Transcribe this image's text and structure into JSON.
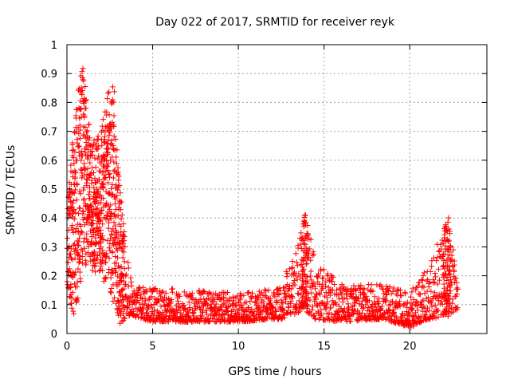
{
  "chart_data": {
    "type": "scatter",
    "title": "Day 022 of 2017, SRMTID for receiver reyk",
    "xlabel": "GPS time / hours",
    "ylabel": "SRMTID / TECUs",
    "xlim": [
      0,
      24.5
    ],
    "ylim": [
      0,
      1
    ],
    "xticks": [
      0,
      5,
      10,
      15,
      20
    ],
    "yticks": [
      0,
      0.1,
      0.2,
      0.3,
      0.4,
      0.5,
      0.6,
      0.7,
      0.8,
      0.9,
      1
    ],
    "xtick_labels": [
      "0",
      "5",
      "10",
      "15",
      "20"
    ],
    "ytick_labels": [
      "0",
      "0.1",
      "0.2",
      "0.3",
      "0.4",
      "0.5",
      "0.6",
      "0.7",
      "0.8",
      "0.9",
      "1"
    ],
    "grid": true,
    "marker": "+",
    "color": "#ff0000",
    "data_coverage_hours": [
      0,
      22.8
    ],
    "activity_envelope": [
      {
        "x": 0.0,
        "lo": 0.18,
        "hi": 0.42
      },
      {
        "x": 0.4,
        "lo": 0.05,
        "hi": 0.72
      },
      {
        "x": 0.9,
        "lo": 0.2,
        "hi": 0.95
      },
      {
        "x": 1.4,
        "lo": 0.22,
        "hi": 0.66
      },
      {
        "x": 2.0,
        "lo": 0.18,
        "hi": 0.7
      },
      {
        "x": 2.4,
        "lo": 0.18,
        "hi": 0.85
      },
      {
        "x": 2.7,
        "lo": 0.1,
        "hi": 0.9
      },
      {
        "x": 3.0,
        "lo": 0.03,
        "hi": 0.6
      },
      {
        "x": 3.4,
        "lo": 0.05,
        "hi": 0.32
      },
      {
        "x": 3.8,
        "lo": 0.06,
        "hi": 0.16
      },
      {
        "x": 5.0,
        "lo": 0.04,
        "hi": 0.16
      },
      {
        "x": 10.0,
        "lo": 0.04,
        "hi": 0.14
      },
      {
        "x": 12.5,
        "lo": 0.05,
        "hi": 0.16
      },
      {
        "x": 13.9,
        "lo": 0.08,
        "hi": 0.42
      },
      {
        "x": 14.5,
        "lo": 0.05,
        "hi": 0.25
      },
      {
        "x": 16.0,
        "lo": 0.04,
        "hi": 0.17
      },
      {
        "x": 18.5,
        "lo": 0.05,
        "hi": 0.17
      },
      {
        "x": 20.0,
        "lo": 0.02,
        "hi": 0.14
      },
      {
        "x": 21.1,
        "lo": 0.05,
        "hi": 0.24
      },
      {
        "x": 22.3,
        "lo": 0.06,
        "hi": 0.41
      },
      {
        "x": 22.8,
        "lo": 0.08,
        "hi": 0.16
      }
    ]
  }
}
